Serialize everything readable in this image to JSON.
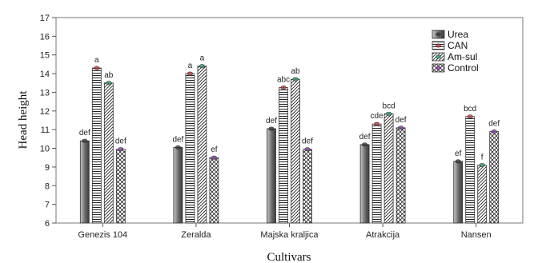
{
  "chart_data": {
    "type": "bar",
    "title": "",
    "xlabel": "Cultivars",
    "ylabel": "Head height",
    "ylim": [
      6,
      17
    ],
    "yticks": [
      6,
      7,
      8,
      9,
      10,
      11,
      12,
      13,
      14,
      15,
      16,
      17
    ],
    "grid": false,
    "legend_position": "top-right",
    "categories": [
      "Genezis 104",
      "Zeralda",
      "Majska kraljica",
      "Atrakcija",
      "Nansen"
    ],
    "series": [
      {
        "name": "Urea",
        "pattern": "solid-gradient",
        "color": "#333333",
        "values": [
          10.4,
          10.05,
          11.05,
          10.2,
          9.3
        ],
        "labels": [
          "def",
          "def",
          "def",
          "def",
          "ef"
        ]
      },
      {
        "name": "CAN",
        "pattern": "horizontal-lines",
        "color": "#c03030",
        "values": [
          14.3,
          14.0,
          13.25,
          11.3,
          11.7
        ],
        "labels": [
          "a",
          "a",
          "abc",
          "cde",
          "bcd"
        ]
      },
      {
        "name": "Am-sul",
        "pattern": "diagonal-lines",
        "color": "#2a9a60",
        "values": [
          13.5,
          14.4,
          13.7,
          11.85,
          9.1
        ],
        "labels": [
          "ab",
          "a",
          "ab",
          "bcd",
          "f"
        ]
      },
      {
        "name": "Control",
        "pattern": "crosshatch",
        "color": "#8a3ab0",
        "values": [
          9.95,
          9.5,
          9.95,
          11.1,
          10.9
        ],
        "labels": [
          "def",
          "ef",
          "def",
          "def",
          "def"
        ]
      }
    ]
  }
}
